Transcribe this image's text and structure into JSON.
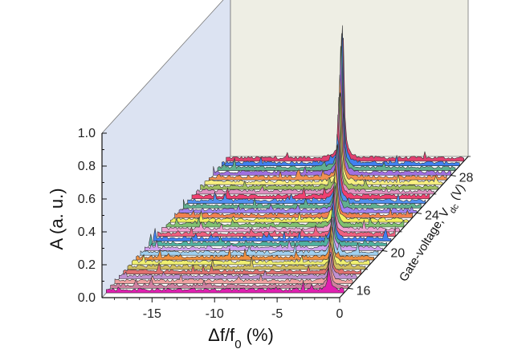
{
  "chart_data": {
    "type": "waterfall-3d",
    "xlabel_main": "Δf/f",
    "xlabel_sub": "0",
    "xlabel_unit": " (%)",
    "ylabel": "A (a. u.)",
    "zlabel_main": "Gate-voltage, V",
    "zlabel_sub": "dc",
    "zlabel_unit": " (V)",
    "x_ticks": [
      "-15",
      "-10",
      "-5",
      "0"
    ],
    "y_ticks": [
      "0.0",
      "0.2",
      "0.4",
      "0.6",
      "0.8",
      "1.0"
    ],
    "z_ticks": [
      "16",
      "20",
      "24",
      "28"
    ],
    "xlim": [
      -19,
      0
    ],
    "ylim": [
      0,
      1.0
    ],
    "zlim": [
      15,
      30
    ],
    "series": [
      {
        "vdc": 15.5,
        "peak_x": -1.2,
        "amp": 0.14,
        "color": "#e020b0"
      },
      {
        "vdc": 16.0,
        "peak_x": -1.5,
        "amp": 0.16,
        "color": "#d080a0"
      },
      {
        "vdc": 16.5,
        "peak_x": -1.8,
        "amp": 0.17,
        "color": "#f0a0a0"
      },
      {
        "vdc": 17.0,
        "peak_x": -2.1,
        "amp": 0.18,
        "color": "#c090d0"
      },
      {
        "vdc": 17.5,
        "peak_x": -2.4,
        "amp": 0.19,
        "color": "#e07070"
      },
      {
        "vdc": 18.0,
        "peak_x": -2.7,
        "amp": 0.2,
        "color": "#d0c060"
      },
      {
        "vdc": 18.5,
        "peak_x": -3.0,
        "amp": 0.21,
        "color": "#f0f070"
      },
      {
        "vdc": 19.0,
        "peak_x": -3.4,
        "amp": 0.22,
        "color": "#f09040"
      },
      {
        "vdc": 19.5,
        "peak_x": -3.7,
        "amp": 0.23,
        "color": "#a0d0f0"
      },
      {
        "vdc": 20.0,
        "peak_x": -4.0,
        "amp": 0.24,
        "color": "#d0a0f0"
      },
      {
        "vdc": 20.5,
        "peak_x": -4.3,
        "amp": 0.25,
        "color": "#50b0a0"
      },
      {
        "vdc": 21.0,
        "peak_x": -4.6,
        "amp": 0.26,
        "color": "#4080f0"
      },
      {
        "vdc": 21.5,
        "peak_x": -4.9,
        "amp": 0.27,
        "color": "#f06080"
      },
      {
        "vdc": 22.0,
        "peak_x": -5.2,
        "amp": 0.3,
        "color": "#f0a0d0"
      },
      {
        "vdc": 22.5,
        "peak_x": -5.5,
        "amp": 0.32,
        "color": "#80c070"
      },
      {
        "vdc": 23.0,
        "peak_x": -5.8,
        "amp": 0.34,
        "color": "#f0f060"
      },
      {
        "vdc": 23.5,
        "peak_x": -6.1,
        "amp": 0.36,
        "color": "#f08050"
      },
      {
        "vdc": 24.0,
        "peak_x": -6.4,
        "amp": 0.4,
        "color": "#a080f0"
      },
      {
        "vdc": 24.5,
        "peak_x": -6.7,
        "amp": 0.44,
        "color": "#60b090"
      },
      {
        "vdc": 25.0,
        "peak_x": -7.0,
        "amp": 0.48,
        "color": "#5090f0"
      },
      {
        "vdc": 25.5,
        "peak_x": -7.3,
        "amp": 0.52,
        "color": "#f04070"
      },
      {
        "vdc": 26.0,
        "peak_x": -7.6,
        "amp": 0.56,
        "color": "#e090c0"
      },
      {
        "vdc": 26.5,
        "peak_x": -7.9,
        "amp": 0.6,
        "color": "#a0c060"
      },
      {
        "vdc": 27.0,
        "peak_x": -8.2,
        "amp": 0.66,
        "color": "#f8f080"
      },
      {
        "vdc": 27.5,
        "peak_x": -8.5,
        "amp": 0.72,
        "color": "#f09050"
      },
      {
        "vdc": 28.0,
        "peak_x": -8.8,
        "amp": 0.78,
        "color": "#a070e0"
      },
      {
        "vdc": 28.5,
        "peak_x": -9.1,
        "amp": 0.82,
        "color": "#60b090"
      },
      {
        "vdc": 29.0,
        "peak_x": -9.4,
        "amp": 0.9,
        "color": "#4080f0"
      },
      {
        "vdc": 29.5,
        "peak_x": -9.7,
        "amp": 0.94,
        "color": "#e04070"
      }
    ]
  }
}
